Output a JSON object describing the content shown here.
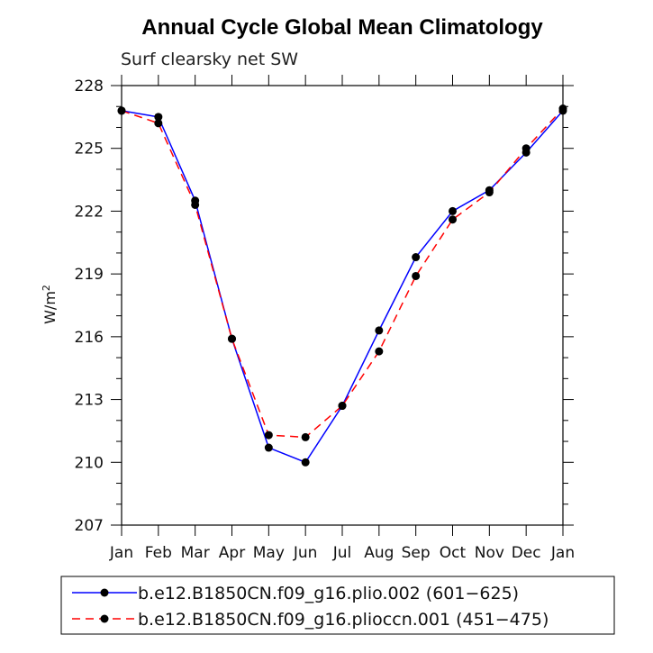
{
  "chart_data": {
    "type": "line",
    "title": "Annual Cycle Global Mean Climatology",
    "subtitle": "Surf clearsky net SW",
    "ylabel_base": "W/m",
    "ylabel_sup": "2",
    "xlabel": "",
    "categories": [
      "Jan",
      "Feb",
      "Mar",
      "Apr",
      "May",
      "Jun",
      "Jul",
      "Aug",
      "Sep",
      "Oct",
      "Nov",
      "Dec",
      "Jan"
    ],
    "ylim": [
      207,
      228
    ],
    "yticks": [
      207,
      210,
      213,
      216,
      219,
      222,
      225,
      228
    ],
    "series": [
      {
        "name": "b.e12.B1850CN.f09_g16.plio.002 (601−625)",
        "color": "#0000ff",
        "dash": "solid",
        "values": [
          226.8,
          226.5,
          222.5,
          215.9,
          210.7,
          210.0,
          212.7,
          216.3,
          219.8,
          222.0,
          223.0,
          224.8,
          226.8
        ]
      },
      {
        "name": "b.e12.B1850CN.f09_g16.plioccn.001 (451−475)",
        "color": "#ff0000",
        "dash": "dashed",
        "values": [
          226.8,
          226.2,
          222.3,
          215.9,
          211.3,
          211.2,
          212.7,
          215.3,
          218.9,
          221.6,
          222.9,
          225.0,
          226.9
        ]
      }
    ]
  }
}
